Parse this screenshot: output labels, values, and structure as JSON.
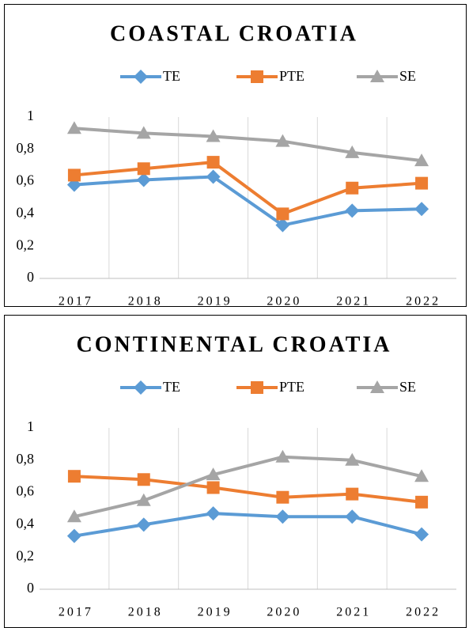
{
  "chart_data": [
    {
      "type": "line",
      "title": "COASTAL CROATIA",
      "categories": [
        "2017",
        "2018",
        "2019",
        "2020",
        "2021",
        "2022"
      ],
      "series": [
        {
          "name": "TE",
          "color": "#5b9bd5",
          "marker": "diamond",
          "values": [
            0.58,
            0.61,
            0.63,
            0.33,
            0.42,
            0.43
          ]
        },
        {
          "name": "PTE",
          "color": "#ed7d31",
          "marker": "square",
          "values": [
            0.64,
            0.68,
            0.72,
            0.4,
            0.56,
            0.59
          ]
        },
        {
          "name": "SE",
          "color": "#a5a5a5",
          "marker": "triangle",
          "values": [
            0.93,
            0.9,
            0.88,
            0.85,
            0.78,
            0.73
          ]
        }
      ],
      "ylim": [
        0,
        1
      ],
      "yticks": [
        0,
        {
          "value": 0.2,
          "label": "0,2"
        },
        {
          "value": 0.4,
          "label": "0,4"
        },
        {
          "value": 0.6,
          "label": "0,6"
        },
        {
          "value": 0.8,
          "label": "0,8"
        },
        1
      ],
      "legend": "top"
    },
    {
      "type": "line",
      "title": "CONTINENTAL CROATIA",
      "categories": [
        "2017",
        "2018",
        "2019",
        "2020",
        "2021",
        "2022"
      ],
      "series": [
        {
          "name": "TE",
          "color": "#5b9bd5",
          "marker": "diamond",
          "values": [
            0.33,
            0.4,
            0.47,
            0.45,
            0.45,
            0.34
          ]
        },
        {
          "name": "PTE",
          "color": "#ed7d31",
          "marker": "square",
          "values": [
            0.7,
            0.68,
            0.63,
            0.57,
            0.59,
            0.54
          ]
        },
        {
          "name": "SE",
          "color": "#a5a5a5",
          "marker": "triangle",
          "values": [
            0.45,
            0.55,
            0.71,
            0.82,
            0.8,
            0.7
          ]
        }
      ],
      "ylim": [
        0,
        1
      ],
      "yticks": [
        0,
        {
          "value": 0.2,
          "label": "0,2"
        },
        {
          "value": 0.4,
          "label": "0,4"
        },
        {
          "value": 0.6,
          "label": "0,6"
        },
        {
          "value": 0.8,
          "label": "0,8"
        },
        1
      ],
      "legend": "top"
    }
  ]
}
